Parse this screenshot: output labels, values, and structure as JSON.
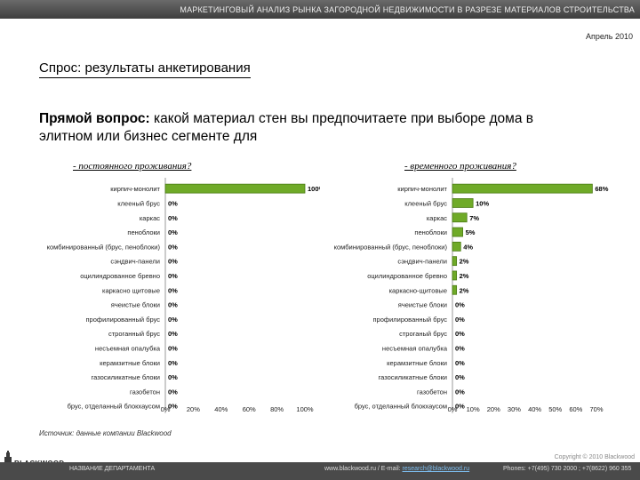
{
  "header": {
    "title": "МАРКЕТИНГОВЫЙ АНАЛИЗ РЫНКА ЗАГОРОДНОЙ НЕДВИЖИМОСТИ В РАЗРЕЗЕ МАТЕРИАЛОВ СТРОИТЕЛЬСТВА"
  },
  "date": "Апрель 2010",
  "section_title": "Спрос: результаты анкетирования",
  "question": {
    "lead": "Прямой вопрос:",
    "text": " какой материал стен вы предпочитаете при выборе дома в элитном или бизнес сегменте для"
  },
  "sub_left": "- постоянного проживания?",
  "sub_right": "- временного проживания?",
  "source": "Источник: данные компании Blackwood",
  "copyright": "Copyright © 2010 Blackwood",
  "footer": {
    "department": "НАЗВАНИЕ ДЕПАРТАМЕНТА",
    "site": "www.blackwood.ru / E-mail: ",
    "email": "research@blackwood.ru",
    "phones": "Phones: +7(495) 730 2000 ; +7(8622) 960 355"
  },
  "logo_text": "BLACKWOOD",
  "colors": {
    "bar": "#6faa28",
    "bar_edge": "#4a7a14",
    "axis": "#999999"
  },
  "chart_data": [
    {
      "type": "bar",
      "orientation": "horizontal",
      "title": "- постоянного проживания?",
      "categories": [
        "кирпич-монолит",
        "клееный брус",
        "каркас",
        "пеноблоки",
        "комбинированный (брус, пеноблоки)",
        "сэндвич-панели",
        "оцилиндрованное бревно",
        "каркасно щитовые",
        "ячеистые блоки",
        "профилированный брус",
        "строганный брус",
        "несъемная опалубка",
        "керамзитные блоки",
        "газосиликатные блоки",
        "газобетон",
        "брус, отделанный блокхаусом"
      ],
      "values": [
        100,
        0,
        0,
        0,
        0,
        0,
        0,
        0,
        0,
        0,
        0,
        0,
        0,
        0,
        0,
        0
      ],
      "value_labels": [
        "100%",
        "0%",
        "0%",
        "0%",
        "0%",
        "0%",
        "0%",
        "0%",
        "0%",
        "0%",
        "0%",
        "0%",
        "0%",
        "0%",
        "0%",
        "0%"
      ],
      "x_ticks": [
        "0%",
        "20%",
        "40%",
        "60%",
        "80%",
        "100%"
      ],
      "xlim": [
        0,
        100
      ]
    },
    {
      "type": "bar",
      "orientation": "horizontal",
      "title": "- временного проживания?",
      "categories": [
        "кирпич-монолит",
        "клееный брус",
        "каркас",
        "пеноблоки",
        "комбинированный (брус, пеноблоки)",
        "сэндвич-панели",
        "оцилиндрованное бревно",
        "каркасно-щитовые",
        "ячеистые блоки",
        "профилированный брус",
        "строганый брус",
        "несъемная опалубка",
        "керамзитные блоки",
        "газосиликатные блоки",
        "газобетон",
        "брус, отделанный блокхаусом"
      ],
      "values": [
        68,
        10,
        7,
        5,
        4,
        2,
        2,
        2,
        0,
        0,
        0,
        0,
        0,
        0,
        0,
        0
      ],
      "value_labels": [
        "68%",
        "10%",
        "7%",
        "5%",
        "4%",
        "2%",
        "2%",
        "2%",
        "0%",
        "0%",
        "0%",
        "0%",
        "0%",
        "0%",
        "0%",
        "0%"
      ],
      "x_ticks": [
        "0%",
        "10%",
        "20%",
        "30%",
        "40%",
        "50%",
        "60%",
        "70%"
      ],
      "xlim": [
        0,
        70
      ]
    }
  ]
}
